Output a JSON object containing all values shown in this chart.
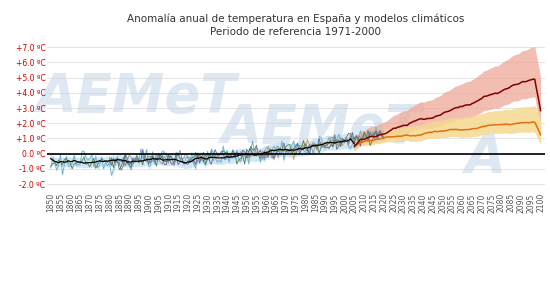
{
  "title_line1": "Anomalía anual de temperatura en España y modelos climáticos",
  "title_line2": "Periodo de referencia 1971-2000",
  "title_fontsize": 7.5,
  "yticks": [
    -2.0,
    -1.0,
    0.0,
    1.0,
    2.0,
    3.0,
    4.0,
    5.0,
    6.0,
    7.0
  ],
  "ytick_labels": [
    "-2.0 ºC",
    "-1.0 ºC",
    "0.0 ºC",
    "+1.0 ºC",
    "+2.0 ºC",
    "+3.0 ºC",
    "+4.0 ºC",
    "+5.0 ºC",
    "+6.0 ºC",
    "+7.0 ºC"
  ],
  "ylim": [
    -2.5,
    7.5
  ],
  "xlim": [
    1848,
    2102
  ],
  "color_aemet": "#6ab0d4",
  "color_aemet_fill": "#a8d4e8",
  "color_era5": "#c8a050",
  "color_gistemp": "#6060a0",
  "color_hadcrut": "#508050",
  "color_noaa": "#909090",
  "color_rcp45_line": "#e07010",
  "color_rcp45_fill": "#f5d890",
  "color_rcp85_line": "#800000",
  "color_rcp85_fill": "#f0a898",
  "color_hist_models": "#000000",
  "color_hist_fill": "#b8d8ee",
  "color_zero_line": "#000000",
  "background_color": "#ffffff",
  "watermark_color": "#dde8f2",
  "legend_fontsize": 6.0,
  "tick_fontsize": 5.5,
  "ytick_color": "#cc0000",
  "xtick_color": "#555555"
}
